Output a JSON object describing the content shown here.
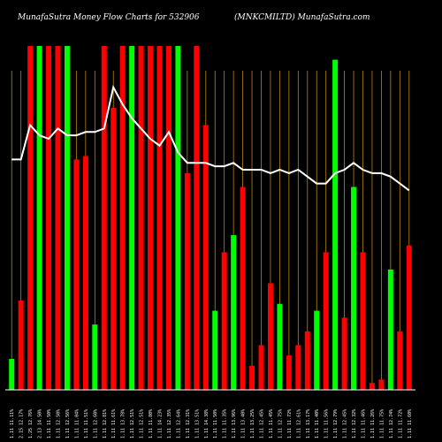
{
  "chart_data": {
    "type": "bar",
    "title_left": "MunafaSutra Money Flow Charts for 532906",
    "title_right": "(MNKCMILTD) MunafaSutra.com",
    "categories": [
      "Mon 11 Feb 2019",
      "Fri 08 Feb 2019",
      "Thu 07 Feb 2019",
      "Wed 06 Feb 2019",
      "Tue 05 Feb 2019",
      "Mon 04 Feb 2019",
      "Fri 01 Feb 2019",
      "Thu 31 Jan 2019",
      "Wed 30 Jan 2019",
      "Tue 29 Jan 2019",
      "Mon 28 Jan 2019",
      "Fri 25 Jan 2019",
      "Thu 24 Jan 2019",
      "Wed 23 Jan 2019",
      "Tue 22 Jan 2019",
      "Mon 21 Jan 2019",
      "Fri 18 Jan 2019",
      "Thu 17 Jan 2019",
      "Wed 16 Jan 2019",
      "Tue 15 Jan 2019",
      "Mon 14 Jan 2019",
      "Fri 11 Jan 2019",
      "Thu 10 Jan 2019",
      "Wed 09 Jan 2019",
      "Tue 08 Jan 2019",
      "Mon 07 Jan 2019",
      "Fri 04 Jan 2019",
      "Thu 03 Jan 2019",
      "Wed 02 Jan 2019",
      "Tue 01 Jan 2019",
      "Mon 31 Dec 2018",
      "Fri 28 Dec 2018",
      "Thu 27 Dec 2018",
      "Wed 26 Dec 2018",
      "Mon 24 Dec 2018",
      "Fri 21 Dec 2018",
      "Thu 20 Dec 2018",
      "Wed 19 Dec 2018",
      "Tue 18 Dec 2018",
      "Mon 17 Dec 2018",
      "Fri 14 Dec 2018",
      "Thu 13 Dec 2018",
      "Wed 12 Dec 2018",
      "Tue 11 Dec 2018"
    ],
    "tick_labels": [
      "1.11 11.11%",
      "2.15 12.17%",
      "1.25 12.76%",
      "2.13 14.50%",
      "1.11 11.50%",
      "1.11 12.50%",
      "1.11 12.56%",
      "1.11 11.04%",
      "1.11 11.51%",
      "1.11 12.60%",
      "1.11 12.81%",
      "1.11 11.61%",
      "1.11 13.78%",
      "1.11 12.51%",
      "1.11 12.51%",
      "1.11 11.80%",
      "1.11 14.23%",
      "1.11 12.35%",
      "1.11 12.64%",
      "1.11 12.31%",
      "1.11 13.51%",
      "1.11 14.38%",
      "1.11 11.50%",
      "1.11 11.35%",
      "1.11 13.96%",
      "1.11 13.40%",
      "1.11 13.25%",
      "1.11 12.45%",
      "1.11 11.45%",
      "1.11 12.75%",
      "1.11 11.72%",
      "1.11 12.61%",
      "1.11 13.17%",
      "1.11 11.40%",
      "1.11 11.56%",
      "1.11 12.79%",
      "1.11 12.45%",
      "1.11 12.32%",
      "1.11 11.46%",
      "1.11 11.26%",
      "1.11 11.75%",
      "1.11 12.74%",
      "1.11 11.72%",
      "1.11 11.60%"
    ],
    "bar_values": [
      9,
      26,
      100,
      100,
      100,
      100,
      100,
      67,
      68,
      19,
      100,
      82,
      100,
      100,
      100,
      100,
      100,
      100,
      100,
      63,
      100,
      77,
      23,
      40,
      45,
      59,
      7,
      13,
      31,
      25,
      10,
      13,
      17,
      23,
      40,
      96,
      21,
      59,
      40,
      2,
      3,
      35,
      17,
      42
    ],
    "bar_colors": [
      "green",
      "red",
      "red",
      "green",
      "red",
      "red",
      "green",
      "red",
      "red",
      "green",
      "red",
      "red",
      "red",
      "green",
      "red",
      "red",
      "red",
      "red",
      "green",
      "red",
      "red",
      "red",
      "green",
      "red",
      "green",
      "red",
      "red",
      "red",
      "red",
      "green",
      "red",
      "red",
      "red",
      "green",
      "red",
      "green",
      "red",
      "green",
      "red",
      "red",
      "red",
      "green",
      "red",
      "red"
    ],
    "line_values": [
      67,
      67,
      77,
      74,
      73,
      76,
      74,
      74,
      75,
      75,
      76,
      88,
      83,
      79,
      76,
      73,
      71,
      75,
      69,
      66,
      66,
      66,
      65,
      65,
      66,
      64,
      64,
      64,
      63,
      64,
      63,
      64,
      62,
      60,
      60,
      63,
      64,
      66,
      64,
      63,
      63,
      62,
      60,
      58
    ],
    "ylim": [
      0,
      100
    ],
    "line_ylim": [
      0,
      100
    ],
    "colors": {
      "background": "#000000",
      "green": "#00ff00",
      "red": "#ff0000",
      "grid": "#b8860b",
      "line": "#ffffff",
      "axis": "#ffffff"
    }
  }
}
